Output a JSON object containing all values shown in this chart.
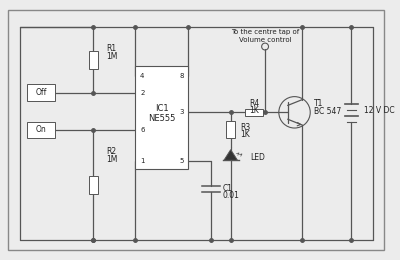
{
  "bg_color": "#ececec",
  "line_color": "#555555",
  "ic_label1": "IC1",
  "ic_label2": "NE555",
  "pin_labels": {
    "1": "1",
    "2": "2",
    "3": "3",
    "4": "4",
    "5": "5",
    "6": "6",
    "8": "8"
  },
  "r1_label": [
    "R1",
    "1M"
  ],
  "r2_label": [
    "R2",
    "1M"
  ],
  "r3_label": [
    "R3",
    "1K"
  ],
  "r4_label": [
    "R4",
    "1K"
  ],
  "c1_label": [
    "C1",
    "0.01"
  ],
  "t1_label": [
    "T1",
    "BC 547"
  ],
  "off_label": "Off",
  "on_label": "On",
  "led_label": "LED",
  "vol_label1": "To the centre tap of",
  "vol_label2": "Volume control",
  "batt_label": "12 V DC"
}
